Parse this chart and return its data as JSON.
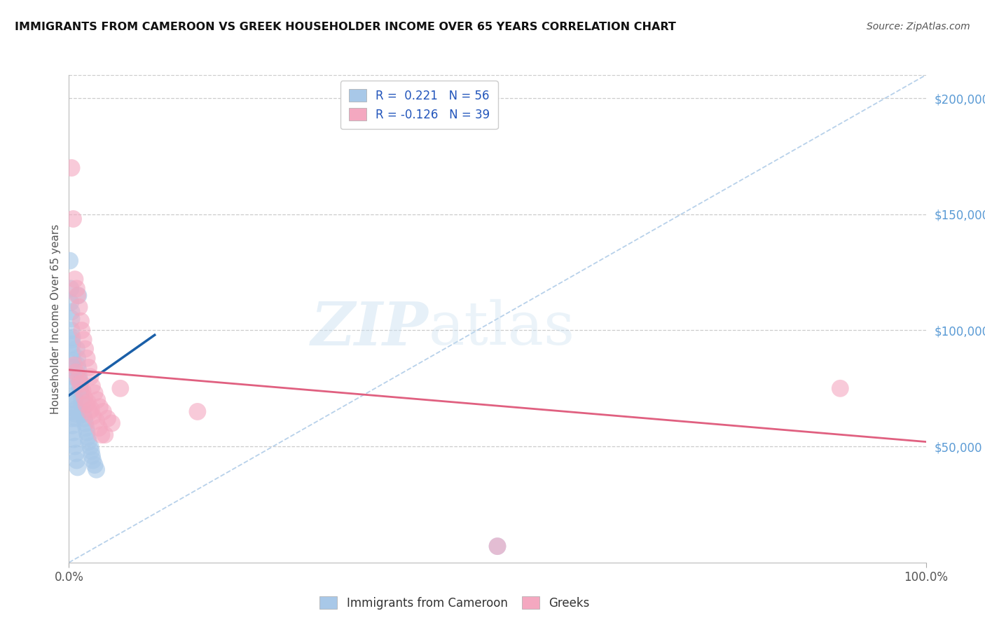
{
  "title": "IMMIGRANTS FROM CAMEROON VS GREEK HOUSEHOLDER INCOME OVER 65 YEARS CORRELATION CHART",
  "source": "Source: ZipAtlas.com",
  "ylabel": "Householder Income Over 65 years",
  "yaxis_labels": [
    "$50,000",
    "$100,000",
    "$150,000",
    "$200,000"
  ],
  "yaxis_values": [
    50000,
    100000,
    150000,
    200000
  ],
  "legend_r1": "R =  0.221",
  "legend_n1": "N = 56",
  "legend_r2": "R = -0.126",
  "legend_n2": "N = 39",
  "watermark_zip": "ZIP",
  "watermark_atlas": "atlas",
  "blue_color": "#a8c8e8",
  "pink_color": "#f4a8c0",
  "blue_line_color": "#1a5fa8",
  "pink_line_color": "#e06080",
  "dashed_line_color": "#b0cce8",
  "background_color": "#ffffff",
  "grid_color": "#cccccc",
  "right_axis_color": "#5b9bd5",
  "legend_box_blue": "#a8c8e8",
  "legend_box_pink": "#f4a8c0",
  "x_min": 0.0,
  "x_max": 1.0,
  "y_min": 0,
  "y_max": 210000,
  "blue_scatter_x": [
    0.001,
    0.002,
    0.002,
    0.003,
    0.003,
    0.003,
    0.004,
    0.004,
    0.004,
    0.005,
    0.005,
    0.005,
    0.006,
    0.006,
    0.007,
    0.007,
    0.007,
    0.008,
    0.008,
    0.009,
    0.009,
    0.01,
    0.01,
    0.011,
    0.011,
    0.012,
    0.013,
    0.013,
    0.014,
    0.015,
    0.015,
    0.016,
    0.017,
    0.018,
    0.019,
    0.02,
    0.021,
    0.022,
    0.023,
    0.025,
    0.026,
    0.027,
    0.028,
    0.03,
    0.032,
    0.002,
    0.003,
    0.004,
    0.005,
    0.006,
    0.007,
    0.008,
    0.009,
    0.01,
    0.003,
    0.5
  ],
  "blue_scatter_y": [
    130000,
    118000,
    112000,
    108000,
    105000,
    100000,
    97000,
    94000,
    90000,
    87000,
    84000,
    80000,
    78000,
    75000,
    72000,
    70000,
    68000,
    66000,
    64000,
    62000,
    92000,
    88000,
    85000,
    115000,
    83000,
    80000,
    78000,
    75000,
    73000,
    70000,
    68000,
    66000,
    64000,
    62000,
    60000,
    58000,
    56000,
    54000,
    52000,
    50000,
    48000,
    46000,
    44000,
    42000,
    40000,
    65000,
    62000,
    59000,
    56000,
    53000,
    50000,
    47000,
    44000,
    41000,
    96000,
    7000
  ],
  "pink_scatter_x": [
    0.003,
    0.005,
    0.007,
    0.009,
    0.01,
    0.012,
    0.014,
    0.015,
    0.017,
    0.019,
    0.021,
    0.023,
    0.025,
    0.027,
    0.03,
    0.033,
    0.036,
    0.04,
    0.045,
    0.05,
    0.006,
    0.008,
    0.011,
    0.013,
    0.016,
    0.018,
    0.022,
    0.026,
    0.028,
    0.032,
    0.035,
    0.042,
    0.06,
    0.15,
    0.9,
    0.02,
    0.024,
    0.038,
    0.5
  ],
  "pink_scatter_y": [
    170000,
    148000,
    122000,
    118000,
    115000,
    110000,
    104000,
    100000,
    96000,
    92000,
    88000,
    84000,
    80000,
    76000,
    73000,
    70000,
    67000,
    65000,
    62000,
    60000,
    85000,
    82000,
    79000,
    77000,
    74000,
    71000,
    69000,
    66000,
    63000,
    61000,
    58000,
    55000,
    75000,
    65000,
    75000,
    68000,
    65000,
    55000,
    7000
  ],
  "blue_line_x": [
    0.0,
    0.1
  ],
  "blue_line_y": [
    72000,
    98000
  ],
  "pink_line_x": [
    0.0,
    1.0
  ],
  "pink_line_y": [
    83000,
    52000
  ],
  "dashed_line_x": [
    0.0,
    1.0
  ],
  "dashed_line_y": [
    0,
    210000
  ]
}
